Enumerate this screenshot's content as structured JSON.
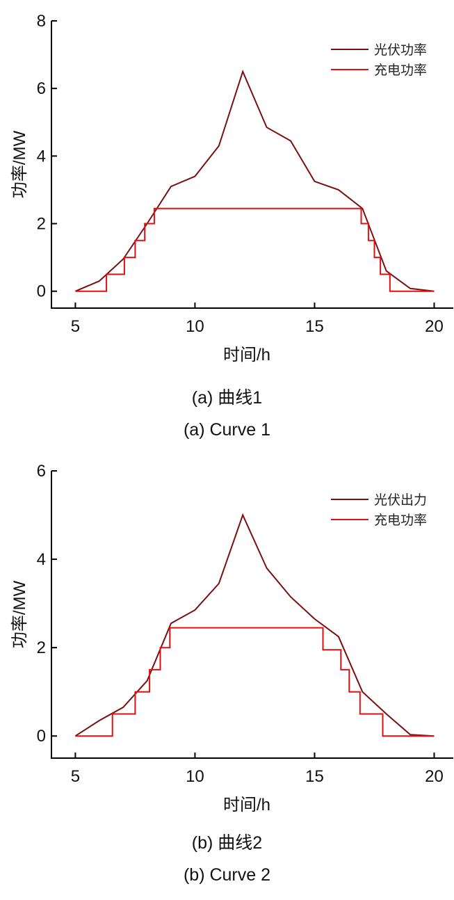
{
  "colors": {
    "pv": "#7b0f0f",
    "charge": "#e01010",
    "axis": "#000000"
  },
  "chart_data": [
    {
      "type": "line",
      "xlabel": "时间/h",
      "ylabel": "功率/MW",
      "xlim": [
        4,
        20.8
      ],
      "ylim": [
        -0.5,
        8
      ],
      "xticks": [
        5,
        10,
        15,
        20
      ],
      "yticks": [
        0,
        2,
        4,
        6,
        8
      ],
      "legend_position": "top-right",
      "caption_cn": "(a) 曲线1",
      "caption_en": "(a) Curve 1",
      "series": [
        {
          "name": "光伏功率",
          "color": "#7b0f0f",
          "step": false,
          "x": [
            5,
            6,
            7,
            8,
            9,
            10,
            11,
            12,
            13,
            14,
            15,
            16,
            17,
            18,
            19,
            20
          ],
          "y": [
            0,
            0.3,
            0.95,
            2.0,
            3.1,
            3.4,
            4.3,
            6.5,
            4.85,
            4.45,
            3.25,
            3.0,
            2.45,
            0.6,
            0.08,
            0
          ]
        },
        {
          "name": "充电功率",
          "color": "#e01010",
          "step": true,
          "x": [
            5,
            6.3,
            7.05,
            7.5,
            7.9,
            8.3,
            16.95,
            17.25,
            17.5,
            17.75,
            18.15,
            20
          ],
          "y": [
            0,
            0.5,
            1.0,
            1.5,
            2.0,
            2.45,
            2.0,
            1.5,
            1.0,
            0.5,
            0,
            0
          ]
        }
      ]
    },
    {
      "type": "line",
      "xlabel": "时间/h",
      "ylabel": "功率/MW",
      "xlim": [
        4,
        20.8
      ],
      "ylim": [
        -0.5,
        6
      ],
      "xticks": [
        5,
        10,
        15,
        20
      ],
      "yticks": [
        0,
        2,
        4,
        6
      ],
      "legend_position": "top-right",
      "caption_cn": "(b) 曲线2",
      "caption_en": "(b) Curve 2",
      "series": [
        {
          "name": "光伏出力",
          "color": "#7b0f0f",
          "step": false,
          "x": [
            5,
            6,
            7,
            8,
            9,
            10,
            11,
            12,
            13,
            14,
            15,
            16,
            17,
            18,
            19,
            20
          ],
          "y": [
            0,
            0.35,
            0.65,
            1.25,
            2.55,
            2.85,
            3.45,
            5.0,
            3.8,
            3.15,
            2.65,
            2.25,
            1.0,
            0.5,
            0.03,
            0
          ]
        },
        {
          "name": "充电功率",
          "color": "#e01010",
          "step": true,
          "x": [
            5,
            6.55,
            7.5,
            8.1,
            8.55,
            8.95,
            15.35,
            16.1,
            16.45,
            16.9,
            17.85,
            20
          ],
          "y": [
            0,
            0.5,
            1.0,
            1.5,
            2.0,
            2.45,
            1.95,
            1.5,
            1.0,
            0.5,
            0,
            0
          ]
        }
      ]
    }
  ]
}
